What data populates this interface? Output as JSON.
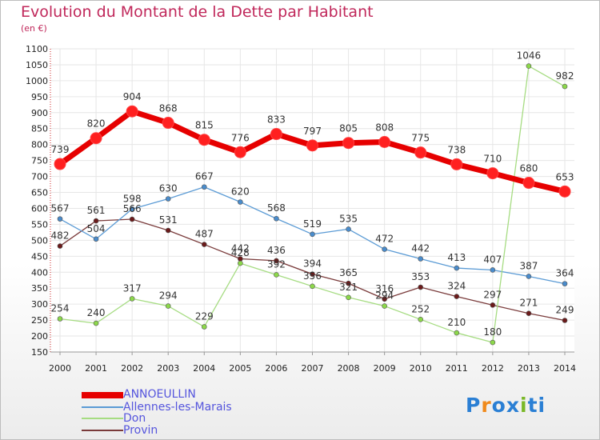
{
  "title": "Evolution du Montant de la Dette par Habitant",
  "unit_label": "(en €)",
  "logo": {
    "text": "Proxiti",
    "letters": [
      "P",
      "r",
      "o",
      "x",
      "i",
      "t",
      "i"
    ],
    "colors": [
      "#2a7fd4",
      "#f08a1c",
      "#2a7fd4",
      "#2a7fd4",
      "#7ab828",
      "#2a7fd4",
      "#2a7fd4"
    ]
  },
  "chart_data": {
    "type": "line",
    "x": [
      "2000",
      "2001",
      "2002",
      "2003",
      "2004",
      "2005",
      "2006",
      "2007",
      "2008",
      "2009",
      "2010",
      "2011",
      "2012",
      "2013",
      "2014"
    ],
    "ylim": [
      150,
      1100
    ],
    "yticks": [
      150,
      200,
      250,
      300,
      350,
      400,
      450,
      500,
      550,
      600,
      650,
      700,
      750,
      800,
      850,
      900,
      950,
      1000,
      1050,
      1100
    ],
    "grid": true,
    "legend_position": "bottom-left",
    "series": [
      {
        "name": "ANNOEULLIN",
        "color": "#e60000",
        "marker_color": "#ff2020",
        "values": [
          739,
          820,
          904,
          868,
          815,
          776,
          833,
          797,
          805,
          808,
          775,
          738,
          710,
          680,
          653
        ]
      },
      {
        "name": "Allennes-les-Marais",
        "color": "#5b9bd5",
        "marker_color": "#4a8ccc",
        "values": [
          567,
          504,
          598,
          630,
          667,
          620,
          568,
          519,
          535,
          472,
          442,
          413,
          407,
          387,
          364
        ]
      },
      {
        "name": "Don",
        "color": "#a6dc82",
        "marker_color": "#8cd84a",
        "values": [
          254,
          240,
          317,
          294,
          229,
          428,
          392,
          356,
          321,
          294,
          252,
          210,
          180,
          1046,
          982
        ]
      },
      {
        "name": "Provin",
        "color": "#7a3b3b",
        "marker_color": "#6b1a1a",
        "values": [
          482,
          561,
          566,
          531,
          487,
          442,
          436,
          394,
          365,
          316,
          353,
          324,
          297,
          271,
          249
        ]
      }
    ]
  }
}
